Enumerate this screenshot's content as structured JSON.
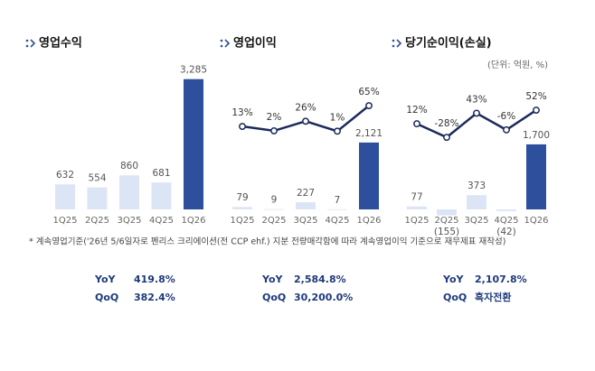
{
  "chart_data": [
    {
      "type": "bar",
      "title": "영업수익",
      "categories": [
        "1Q25",
        "2Q25",
        "3Q25",
        "4Q25",
        "1Q26"
      ],
      "values": [
        632,
        554,
        860,
        681,
        3285
      ],
      "value_labels": [
        "632",
        "554",
        "860",
        "681",
        "3,285"
      ],
      "bar_colors": [
        "#dce5f5",
        "#dce5f5",
        "#dce5f5",
        "#dce5f5",
        "#2d4f9c"
      ],
      "ylim": [
        0,
        3300
      ],
      "summary": [
        {
          "label": "YoY",
          "value": "419.8%"
        },
        {
          "label": "QoQ",
          "value": "382.4%"
        }
      ]
    },
    {
      "type": "bar",
      "title": "영업이익",
      "categories": [
        "1Q25",
        "2Q25",
        "3Q25",
        "4Q25",
        "1Q26"
      ],
      "values": [
        79,
        9,
        227,
        7,
        2121
      ],
      "value_labels": [
        "79",
        "9",
        "227",
        "7",
        "2,121"
      ],
      "bar_colors": [
        "#dce5f5",
        "#dce5f5",
        "#dce5f5",
        "#dce5f5",
        "#2d4f9c"
      ],
      "ylim": [
        0,
        4150
      ],
      "line": {
        "values": [
          13,
          2,
          26,
          1,
          65
        ],
        "value_labels": [
          "13%",
          "2%",
          "26%",
          "1%",
          "65%"
        ],
        "color": "#1c2a5a",
        "axis": "y2"
      },
      "y2lim": [
        -195,
        133
      ],
      "summary": [
        {
          "label": "YoY",
          "value": "2,584.8%"
        },
        {
          "label": "QoQ",
          "value": "30,200.0%"
        }
      ]
    },
    {
      "type": "bar",
      "title": "당기순이익(손실)",
      "unit_note": "(단위: 억원, %)",
      "categories": [
        "1Q25",
        "2Q25",
        "3Q25",
        "4Q25",
        "1Q26"
      ],
      "values": [
        77,
        -155,
        373,
        -42,
        1700
      ],
      "value_labels": [
        "77",
        "(155)",
        "373",
        "(42)",
        "1,700"
      ],
      "bar_colors": [
        "#dce5f5",
        "#dce5f5",
        "#dce5f5",
        "#dce5f5",
        "#2d4f9c"
      ],
      "ylim": [
        0,
        3420
      ],
      "line": {
        "values": [
          12,
          -28,
          43,
          -6,
          52
        ],
        "value_labels": [
          "12%",
          "-28%",
          "43%",
          "-6%",
          "52%"
        ],
        "color": "#1c2a5a",
        "axis": "y2"
      },
      "y2lim": [
        -240,
        145
      ],
      "summary": [
        {
          "label": "YoY",
          "value": "2,107.8%"
        },
        {
          "label": "QoQ",
          "value": "흑자전환"
        }
      ]
    }
  ],
  "note": "* 계속영업기준('26년 5/6일자로 펜리스 크리에이션(전 CCP ehf.) 지분 전량매각함에 따라 계속영업이익 기준으로 재무제표 재작성)"
}
